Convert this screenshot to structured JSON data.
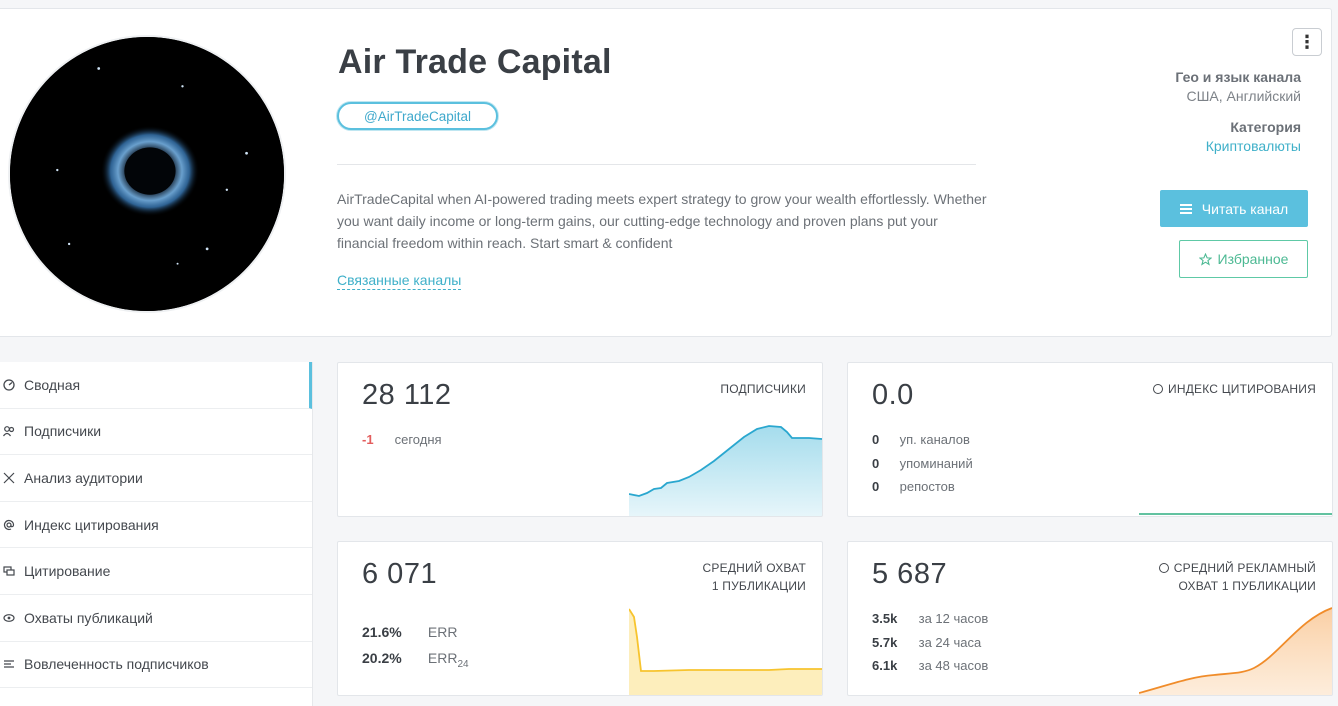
{
  "channel": {
    "title": "Air Trade Capital",
    "handle": "@AirTradeCapital",
    "description": "AirTradeCapital when AI-powered trading meets expert strategy to grow your wealth effortlessly. Whether you want daily income or long-term gains, our cutting-edge technology and proven plans put your financial freedom within reach. Start smart & confident",
    "related_link": "Связанные каналы",
    "geo_label": "Гео и язык канала",
    "geo_value": "США, Английский",
    "category_label": "Категория",
    "category_value": "Криптовалюты",
    "read_button": "Читать канал",
    "favorite_button": "Избранное",
    "menu_icon": "⋮"
  },
  "sidebar": {
    "items": [
      {
        "label": "Сводная",
        "icon": "dashboard-icon"
      },
      {
        "label": "Подписчики",
        "icon": "users-icon"
      },
      {
        "label": "Анализ аудитории",
        "icon": "audience-icon"
      },
      {
        "label": "Индекс цитирования",
        "icon": "at-icon"
      },
      {
        "label": "Цитирование",
        "icon": "quote-icon"
      },
      {
        "label": "Охваты публикаций",
        "icon": "eye-icon"
      },
      {
        "label": "Вовлеченность подписчиков",
        "icon": "engagement-icon"
      }
    ]
  },
  "cards": {
    "subscribers": {
      "value": "28 112",
      "label": "ПОДПИСЧИКИ",
      "delta": "-1",
      "delta_label": "сегодня"
    },
    "citation": {
      "value": "0.0",
      "label": "ИНДЕКС ЦИТИРОВАНИЯ",
      "rows": [
        {
          "count": "0",
          "label": "уп. каналов"
        },
        {
          "count": "0",
          "label": "упоминаний"
        },
        {
          "count": "0",
          "label": "репостов"
        }
      ]
    },
    "reach": {
      "value": "6 071",
      "label_line1": "СРЕДНИЙ ОХВАТ",
      "label_line2": "1 ПУБЛИКАЦИИ",
      "err_value": "21.6%",
      "err_label": "ERR",
      "err24_value": "20.2%",
      "err24_label": "ERR",
      "err24_sub": "24"
    },
    "ad_reach": {
      "value": "5 687",
      "label_line1": "СРЕДНИЙ РЕКЛАМНЫЙ",
      "label_line2": "ОХВАТ 1 ПУБЛИКАЦИИ",
      "rows": [
        {
          "count": "3.5k",
          "label": "за 12 часов"
        },
        {
          "count": "5.7k",
          "label": "за 24 часа"
        },
        {
          "count": "6.1k",
          "label": "за 48 часов"
        }
      ]
    }
  },
  "colors": {
    "accent": "#5bc0de",
    "negative": "#e35d5d",
    "green": "#4cb993",
    "yellow": "#f7c42e",
    "orange": "#f08c2a"
  }
}
